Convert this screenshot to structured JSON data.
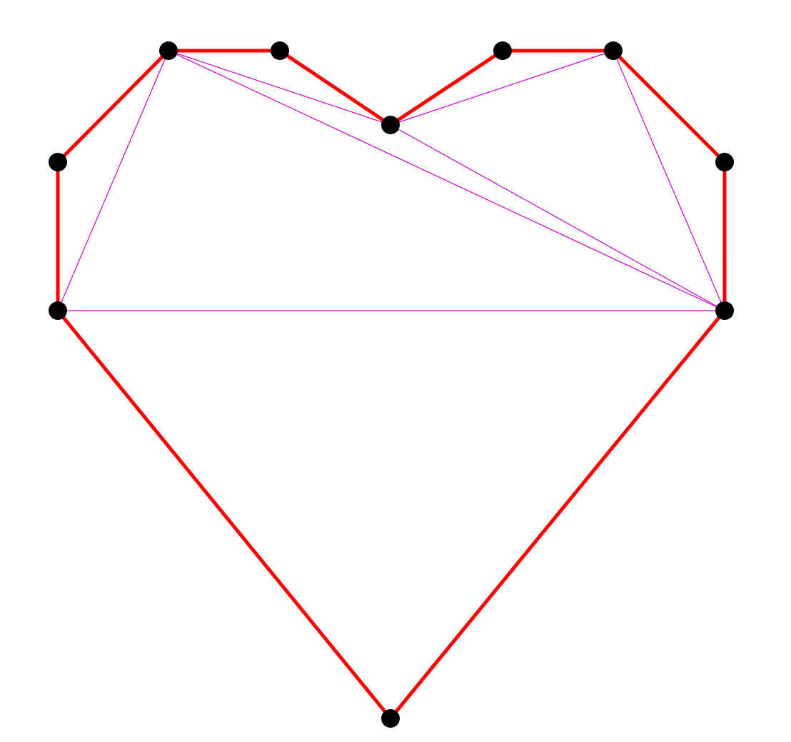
{
  "diagram": {
    "kind": "polygon-triangulation",
    "background_color": "#ffffff",
    "boundary_color": "#ff0000",
    "diagonal_color": "#cc00cc",
    "vertex_color": "#000000",
    "vertices": [
      {
        "id": "v1"
      },
      {
        "id": "v2"
      },
      {
        "id": "v3"
      },
      {
        "id": "v4"
      },
      {
        "id": "v5"
      },
      {
        "id": "v6"
      },
      {
        "id": "v7"
      },
      {
        "id": "v8"
      },
      {
        "id": "v9"
      },
      {
        "id": "v10"
      },
      {
        "id": "v11"
      }
    ],
    "boundary_edges": [
      [
        "v1",
        "v2"
      ],
      [
        "v2",
        "v3"
      ],
      [
        "v3",
        "v4"
      ],
      [
        "v4",
        "v5"
      ],
      [
        "v5",
        "v6"
      ],
      [
        "v6",
        "v7"
      ],
      [
        "v7",
        "v8"
      ],
      [
        "v8",
        "v9"
      ],
      [
        "v9",
        "v10"
      ],
      [
        "v10",
        "v11"
      ],
      [
        "v11",
        "v1"
      ]
    ],
    "diagonals": [
      [
        "v2",
        "v4"
      ],
      [
        "v4",
        "v6"
      ],
      [
        "v6",
        "v8"
      ],
      [
        "v2",
        "v8"
      ],
      [
        "v2",
        "v9"
      ],
      [
        "v9",
        "v11"
      ],
      [
        "v11",
        "v2"
      ]
    ]
  }
}
